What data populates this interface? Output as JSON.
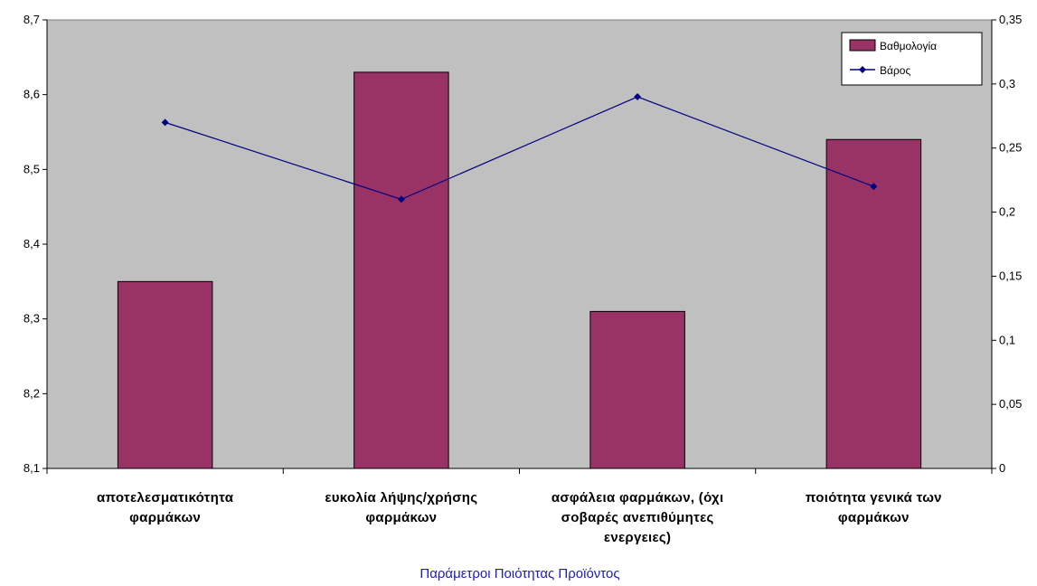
{
  "chart_data": {
    "type": "bar",
    "xlabel": "Παράμετροι Ποιότητας Προϊόντος",
    "categories": [
      [
        "αποτελεσματικότητα",
        "φαρμάκων"
      ],
      [
        "ευκολία λήψης/χρήσης",
        "φαρμάκων"
      ],
      [
        "ασφάλεια φαρμάκων, (όχι",
        "σοβαρές ανεπιθύμητες",
        "ενεργειες)"
      ],
      [
        "ποιότητα γενικά των",
        "φαρμάκων"
      ]
    ],
    "series": [
      {
        "name": "Βαθμολογία",
        "kind": "bar",
        "axis": "left",
        "color": "#993366",
        "values": [
          8.35,
          8.63,
          8.31,
          8.54
        ]
      },
      {
        "name": "Βάρος",
        "kind": "line",
        "axis": "right",
        "color": "#000080",
        "marker": "diamond",
        "values": [
          0.27,
          0.21,
          0.29,
          0.22
        ]
      }
    ],
    "y_left": {
      "min": 8.1,
      "max": 8.7,
      "ticks": [
        "8,1",
        "8,2",
        "8,3",
        "8,4",
        "8,5",
        "8,6",
        "8,7"
      ]
    },
    "y_right": {
      "min": 0,
      "max": 0.35,
      "ticks": [
        "0",
        "0,05",
        "0,1",
        "0,15",
        "0,2",
        "0,25",
        "0,3",
        "0,35"
      ]
    },
    "plot_background": "#c0c0c0",
    "grid": false,
    "legend_position": "top-right"
  }
}
